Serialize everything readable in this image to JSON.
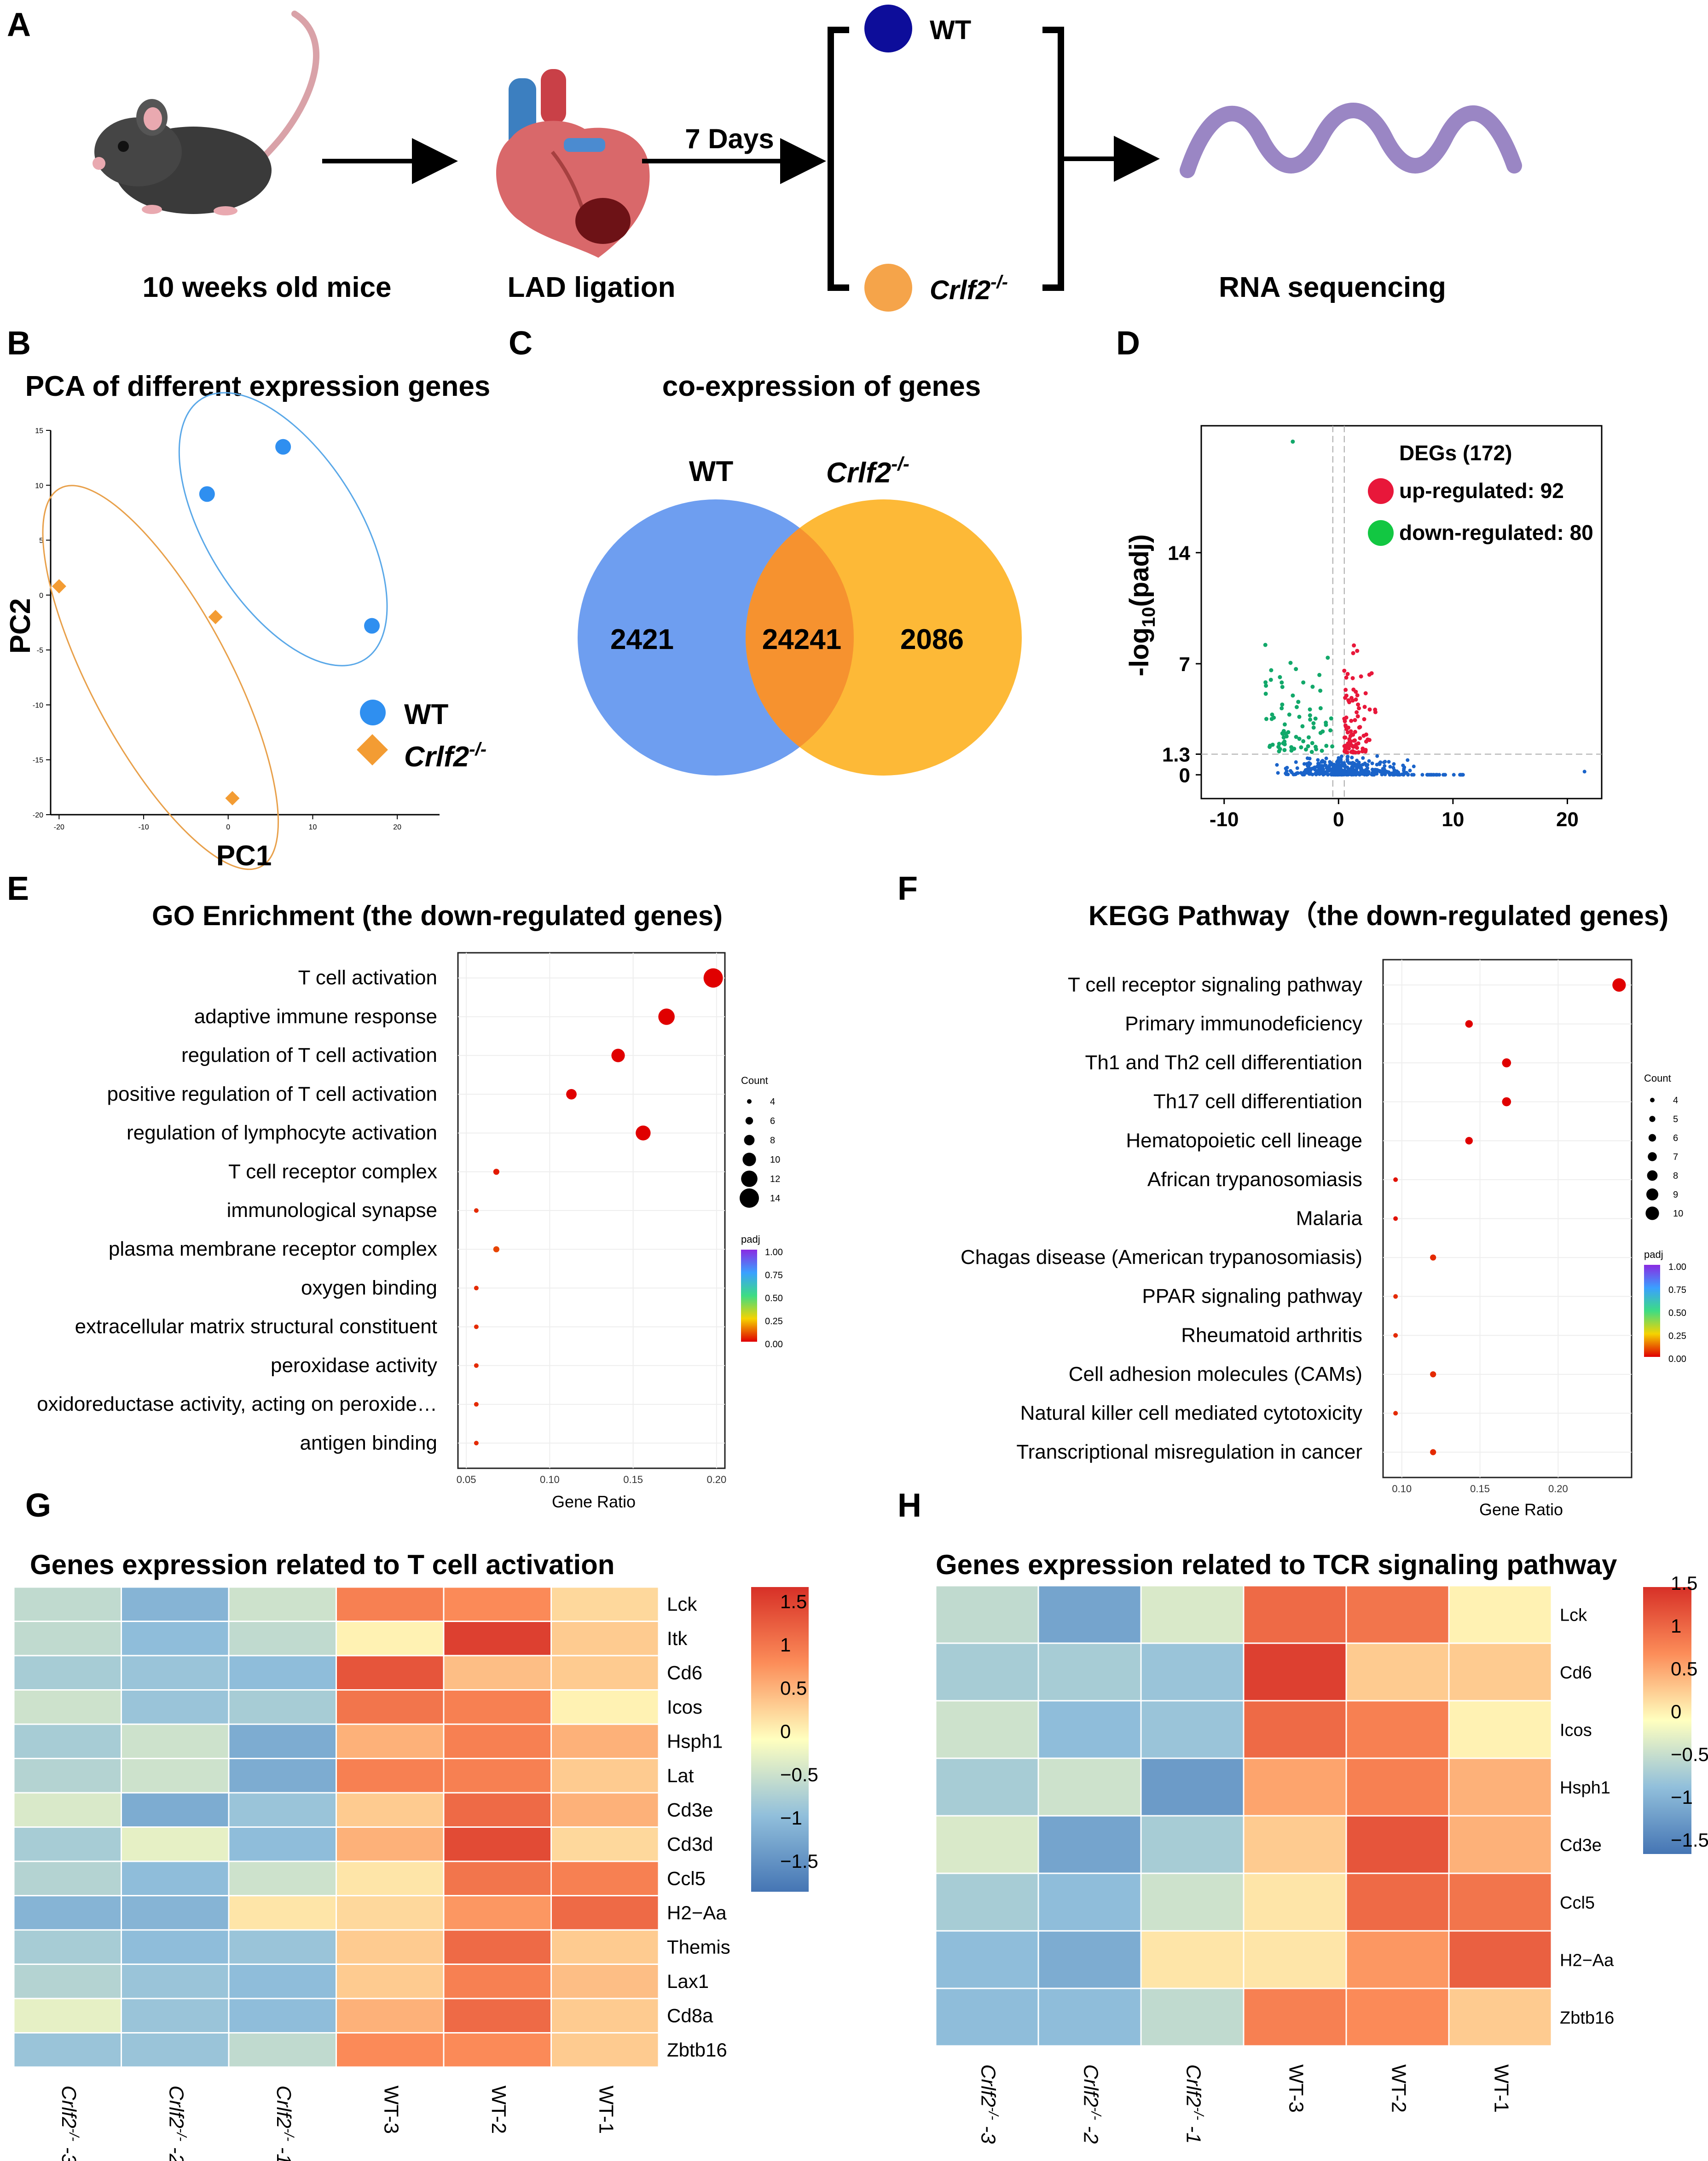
{
  "panel_letters": [
    "A",
    "B",
    "C",
    "D",
    "E",
    "F",
    "G",
    "H"
  ],
  "colors": {
    "wt": "#0d0d9a",
    "ko": "#f5a44a",
    "arrow": "#000000",
    "wave": "#9a86c4",
    "pca_wt": "#2f8ff0",
    "pca_ko": "#f39c33",
    "venn_wt": "#6e9ef0",
    "venn_ko": "#fdb937",
    "venn_overlap": "#f6922f",
    "up": "#e8173a",
    "down": "#12a86a",
    "ns": "#1a63c9",
    "heat_low": "#4575b4",
    "heat_mid": "#ffffbf",
    "heat_high": "#d73027"
  },
  "panelA": {
    "steps": [
      "10 weeks old mice",
      "LAD ligation",
      "RNA sequencing"
    ],
    "days_label": "7 Days",
    "group_wt": "WT",
    "group_ko": "Crlf2",
    "ko_superscript": "-/-",
    "icons": [
      "mouse-icon",
      "heart-icon",
      "rna-wave-icon"
    ]
  },
  "panelB": {
    "title": "PCA of different expression genes",
    "legend": [
      {
        "label": "WT"
      },
      {
        "label": "Crlf2",
        "sup": "-/-"
      }
    ],
    "chart_data": {
      "type": "scatter",
      "title": "PCA of different expression genes",
      "xlabel": "PC1",
      "ylabel": "PC2",
      "xlim": [
        -21,
        25
      ],
      "ylim": [
        -20,
        15
      ],
      "xticks": [
        "-20",
        "-10",
        "0",
        "10",
        "20"
      ],
      "yticks": [
        "15",
        "10",
        "5",
        "0",
        "-5",
        "-10",
        "-15",
        "-20"
      ],
      "series": [
        {
          "name": "WT",
          "points": [
            [
              6.5,
              13.5
            ],
            [
              -2.5,
              9.2
            ],
            [
              17,
              -2.8
            ]
          ]
        },
        {
          "name": "Crlf2-/-",
          "points": [
            [
              -20,
              0.8
            ],
            [
              -1.5,
              -2
            ],
            [
              0.5,
              -18.5
            ]
          ]
        }
      ]
    }
  },
  "panelC": {
    "title": "co-expression of genes",
    "set_a": "WT",
    "set_b": "Crlf2",
    "set_b_sup": "-/-",
    "only_a": "2421",
    "both": "24241",
    "only_b": "2086"
  },
  "panelD": {
    "legend_title": "DEGs (172)",
    "up_label": "up-regulated",
    "up_count": "92",
    "down_label": "down-regulated",
    "down_count": "80",
    "chart_data": {
      "type": "scatter",
      "xlabel": "",
      "ylabel": "-log10(padj)",
      "xlim": [
        -12,
        23
      ],
      "ylim": [
        -1.5,
        22
      ],
      "xticks": [
        "-10",
        "0",
        "10",
        "20"
      ],
      "yticks": [
        "0",
        "1.3",
        "7",
        "14"
      ],
      "threshold_padj_log": 1.3,
      "threshold_fc": [
        -0.5,
        0.5
      ],
      "series": [
        {
          "name": "up-regulated",
          "count": 92
        },
        {
          "name": "down-regulated",
          "count": 80
        },
        {
          "name": "not significant"
        }
      ]
    }
  },
  "panelE": {
    "title": "GO Enrichment (the down-regulated genes)",
    "size_legend_title": "Count",
    "size_legend": [
      "4",
      "6",
      "8",
      "10",
      "12",
      "14"
    ],
    "color_legend_title": "padj",
    "color_legend_ticks": [
      "1.00",
      "0.75",
      "0.50",
      "0.25",
      "0.00"
    ],
    "chart_data": {
      "type": "scatter",
      "xlabel": "Gene Ratio",
      "xlim": [
        0.045,
        0.205
      ],
      "xticks": [
        "0.05",
        "0.10",
        "0.15",
        "0.20"
      ],
      "terms": [
        "T cell activation",
        "adaptive immune response",
        "regulation of T cell activation",
        "positive regulation of T cell activation",
        "regulation of lymphocyte activation",
        "T cell receptor complex",
        "immunological synapse",
        "plasma membrane receptor complex",
        "oxygen binding",
        "extracellular matrix structural constituent",
        "peroxidase activity",
        "oxidoreductase activity, acting on peroxide…",
        "antigen binding"
      ],
      "gene_ratio": [
        0.198,
        0.17,
        0.141,
        0.113,
        0.156,
        0.068,
        0.056,
        0.068,
        0.056,
        0.056,
        0.056,
        0.056,
        0.056
      ],
      "count": [
        14,
        12,
        10,
        8,
        11,
        5,
        4,
        5,
        4,
        4,
        4,
        4,
        4
      ],
      "padj": [
        0.0,
        0.0,
        0.0,
        0.0,
        0.0,
        0.03,
        0.05,
        0.08,
        0.05,
        0.05,
        0.05,
        0.05,
        0.05
      ]
    }
  },
  "panelF": {
    "title": "KEGG Pathway（the down-regulated genes)",
    "size_legend_title": "Count",
    "size_legend": [
      "4",
      "5",
      "6",
      "7",
      "8",
      "9",
      "10"
    ],
    "color_legend_title": "padj",
    "color_legend_ticks": [
      "1.00",
      "0.75",
      "0.50",
      "0.25",
      "0.00"
    ],
    "chart_data": {
      "type": "scatter",
      "xlabel": "Gene Ratio",
      "xlim": [
        0.088,
        0.247
      ],
      "xticks": [
        "0.10",
        "0.15",
        "0.20"
      ],
      "terms": [
        "T cell receptor signaling pathway",
        "Primary immunodeficiency",
        "Th1 and Th2 cell differentiation",
        "Th17 cell differentiation",
        "Hematopoietic cell lineage",
        "African trypanosomiasis",
        "Malaria",
        "Chagas disease (American trypanosomiasis)",
        "PPAR signaling pathway",
        "Rheumatoid arthritis",
        "Cell adhesion molecules (CAMs)",
        "Natural killer cell mediated cytotoxicity",
        "Transcriptional misregulation in cancer"
      ],
      "gene_ratio": [
        0.239,
        0.143,
        0.167,
        0.167,
        0.143,
        0.096,
        0.096,
        0.12,
        0.096,
        0.096,
        0.12,
        0.096,
        0.12
      ],
      "count": [
        10,
        6,
        7,
        7,
        6,
        4,
        4,
        5,
        4,
        4,
        5,
        4,
        5
      ],
      "padj": [
        0.0,
        0.0,
        0.0,
        0.0,
        0.0,
        0.02,
        0.02,
        0.05,
        0.05,
        0.05,
        0.05,
        0.05,
        0.05
      ]
    }
  },
  "panelG": {
    "title": "Genes expression related to T cell activation",
    "legend_ticks": [
      "1.5",
      "1",
      "0.5",
      "0",
      "−0.5",
      "−1",
      "−1.5"
    ],
    "chart_data": {
      "type": "heatmap",
      "title": "Genes expression related to T cell activation",
      "zlim": [
        -1.75,
        1.75
      ],
      "columns": [
        {
          "base": "Crlf2",
          "sup": "-/-",
          "suffix": " -3"
        },
        {
          "base": "Crlf2",
          "sup": "-/-",
          "suffix": " -2"
        },
        {
          "base": "Crlf2",
          "sup": "-/-",
          "suffix": " -1"
        },
        {
          "base": "WT-3",
          "sup": "",
          "suffix": ""
        },
        {
          "base": "WT-2",
          "sup": "",
          "suffix": ""
        },
        {
          "base": "WT-1",
          "sup": "",
          "suffix": ""
        }
      ],
      "rows": [
        "Lck",
        "Itk",
        "Cd6",
        "Icos",
        "Hsph1",
        "Lat",
        "Cd3e",
        "Cd3d",
        "Ccl5",
        "H2−Aa",
        "Themis",
        "Lax1",
        "Cd8a",
        "Zbtb16"
      ],
      "values": [
        [
          -0.5,
          -1.0,
          -0.4,
          1.0,
          0.9,
          0.3
        ],
        [
          -0.5,
          -0.9,
          -0.5,
          0.1,
          1.6,
          0.4
        ],
        [
          -0.7,
          -0.8,
          -0.9,
          1.4,
          0.5,
          0.4
        ],
        [
          -0.4,
          -0.8,
          -0.7,
          1.1,
          1.0,
          0.1
        ],
        [
          -0.7,
          -0.4,
          -1.1,
          0.6,
          1.0,
          0.6
        ],
        [
          -0.6,
          -0.4,
          -1.1,
          1.0,
          1.0,
          0.4
        ],
        [
          -0.3,
          -1.1,
          -0.8,
          0.4,
          1.2,
          0.6
        ],
        [
          -0.7,
          -0.2,
          -0.9,
          0.6,
          1.5,
          0.3
        ],
        [
          -0.6,
          -0.9,
          -0.4,
          0.2,
          1.1,
          1.0
        ],
        [
          -1.0,
          -1.0,
          0.2,
          0.3,
          0.8,
          1.2
        ],
        [
          -0.7,
          -0.9,
          -0.8,
          0.4,
          1.2,
          0.4
        ],
        [
          -0.6,
          -0.8,
          -0.9,
          0.4,
          1.0,
          0.5
        ],
        [
          -0.2,
          -0.8,
          -0.9,
          0.6,
          1.2,
          0.4
        ],
        [
          -0.8,
          -0.8,
          -0.5,
          0.9,
          0.9,
          0.4
        ]
      ]
    }
  },
  "panelH": {
    "title": "Genes expression related to TCR signaling pathway",
    "legend_ticks": [
      "1.5",
      "1",
      "0.5",
      "0",
      "−0.5",
      "−1",
      "−1.5"
    ],
    "chart_data": {
      "type": "heatmap",
      "title": "Genes expression related to TCR signaling pathway",
      "zlim": [
        -1.75,
        1.75
      ],
      "columns": [
        {
          "base": "Crlf2",
          "sup": "-/-",
          "suffix": " -3"
        },
        {
          "base": "Crlf2",
          "sup": "-/-",
          "suffix": " -2"
        },
        {
          "base": "Crlf2",
          "sup": "-/-",
          "suffix": " -1"
        },
        {
          "base": "WT-3",
          "sup": "",
          "suffix": ""
        },
        {
          "base": "WT-2",
          "sup": "",
          "suffix": ""
        },
        {
          "base": "WT-1",
          "sup": "",
          "suffix": ""
        }
      ],
      "rows": [
        "Lck",
        "Cd6",
        "Icos",
        "Hsph1",
        "Cd3e",
        "Ccl5",
        "H2−Aa",
        "Zbtb16"
      ],
      "values": [
        [
          -0.5,
          -1.2,
          -0.3,
          1.2,
          1.1,
          0.1
        ],
        [
          -0.7,
          -0.7,
          -0.8,
          1.6,
          0.4,
          0.4
        ],
        [
          -0.4,
          -0.9,
          -0.8,
          1.2,
          1.0,
          0.1
        ],
        [
          -0.7,
          -0.4,
          -1.3,
          0.7,
          1.0,
          0.6
        ],
        [
          -0.3,
          -1.2,
          -0.7,
          0.4,
          1.4,
          0.6
        ],
        [
          -0.7,
          -0.9,
          -0.4,
          0.2,
          1.2,
          1.1
        ],
        [
          -0.9,
          -1.1,
          0.2,
          0.2,
          0.8,
          1.3
        ],
        [
          -0.9,
          -0.9,
          -0.5,
          1.0,
          0.9,
          0.4
        ]
      ]
    }
  }
}
